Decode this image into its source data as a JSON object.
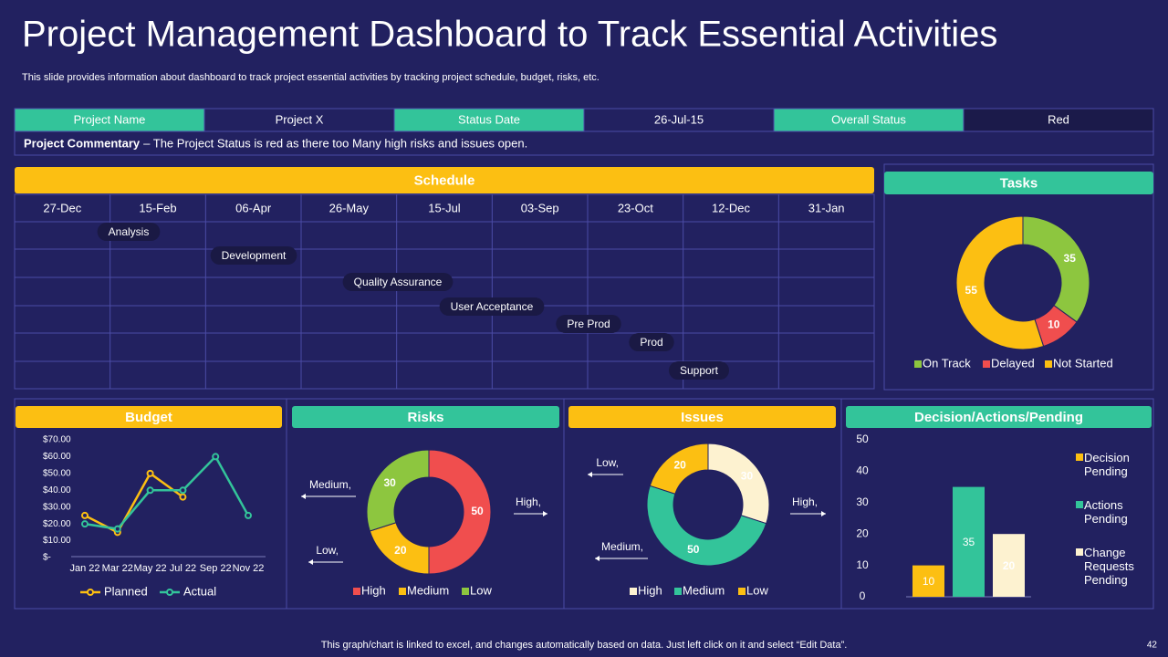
{
  "title": "Project Management Dashboard to Track Essential Activities",
  "subtitle": "This slide provides information about dashboard to track project essential activities by tracking project schedule, budget, risks, etc.",
  "project_table": {
    "cells": [
      [
        "Project Name",
        "Project X"
      ],
      [
        "Status Date",
        "26-Jul-15"
      ],
      [
        "Overall Status",
        "Red"
      ]
    ],
    "commentary_label": "Project Commentary",
    "commentary": "– The Project Status is red as there too Many high risks and issues open."
  },
  "schedule": {
    "title": "Schedule",
    "dates": [
      "27-Dec",
      "15-Feb",
      "06-Apr",
      "26-May",
      "15-Jul",
      "03-Sep",
      "23-Oct",
      "12-Dec",
      "31-Jan"
    ],
    "tasks": [
      "Analysis",
      "Development",
      "Quality Assurance",
      "User Acceptance",
      "Pre Prod",
      "Prod",
      "Support"
    ]
  },
  "chart_data": [
    {
      "type": "donut",
      "title": "Tasks",
      "categories": [
        "On Track",
        "Delayed",
        "Not Started"
      ],
      "values": [
        35,
        10,
        55
      ],
      "colors": [
        "#8dc63f",
        "#f04e4e",
        "#fcbf12"
      ]
    },
    {
      "type": "line",
      "title": "Budget",
      "categories": [
        "Jan 22",
        "Mar 22",
        "May 22",
        "Jul 22",
        "Sep 22",
        "Nov 22"
      ],
      "ylim": [
        0,
        70
      ],
      "yticks": [
        {
          "value": 0,
          "label": "$-"
        },
        {
          "value": 10,
          "label": "$10.00"
        },
        {
          "value": 20,
          "label": "$20.00"
        },
        {
          "value": 30,
          "label": "$30.00"
        },
        {
          "value": 40,
          "label": "$40.00"
        },
        {
          "value": 50,
          "label": "$50.00"
        },
        {
          "value": 60,
          "label": "$60.00"
        },
        {
          "value": 70,
          "label": "$70.00"
        }
      ],
      "series": [
        {
          "name": "Planned",
          "color": "#fcbf12",
          "values": [
            25,
            15,
            50,
            36,
            null,
            null
          ]
        },
        {
          "name": "Actual",
          "color": "#33c49a",
          "values": [
            20,
            17,
            40,
            40,
            60,
            25
          ]
        }
      ]
    },
    {
      "type": "donut",
      "title": "Risks",
      "categories": [
        "High",
        "Medium",
        "Low"
      ],
      "values": [
        50,
        20,
        30
      ],
      "colors": [
        "#f04e4e",
        "#fcbf12",
        "#8dc63f"
      ],
      "callouts": [
        "High,",
        "Medium,",
        "Low,"
      ]
    },
    {
      "type": "donut",
      "title": "Issues",
      "categories": [
        "High",
        "Medium",
        "Low"
      ],
      "values": [
        30,
        50,
        20
      ],
      "colors": [
        "#fdf2d0",
        "#33c49a",
        "#fcbf12"
      ],
      "callouts": [
        "High,",
        "Medium,",
        "Low,"
      ]
    },
    {
      "type": "bar",
      "title": "Decision/Actions/Pending",
      "categories": [
        "Decision Pending",
        "Actions Pending",
        "Change Requests Pending"
      ],
      "values": [
        10,
        35,
        20
      ],
      "colors": [
        "#fcbf12",
        "#33c49a",
        "#fdf2d0"
      ],
      "ylim": [
        0,
        50
      ],
      "yticks": [
        0,
        10,
        20,
        30,
        40,
        50
      ]
    }
  ],
  "footer": "This graph/chart is linked to excel, and changes automatically based on data. Just left click on it and select “Edit Data”.",
  "page_number": "42"
}
